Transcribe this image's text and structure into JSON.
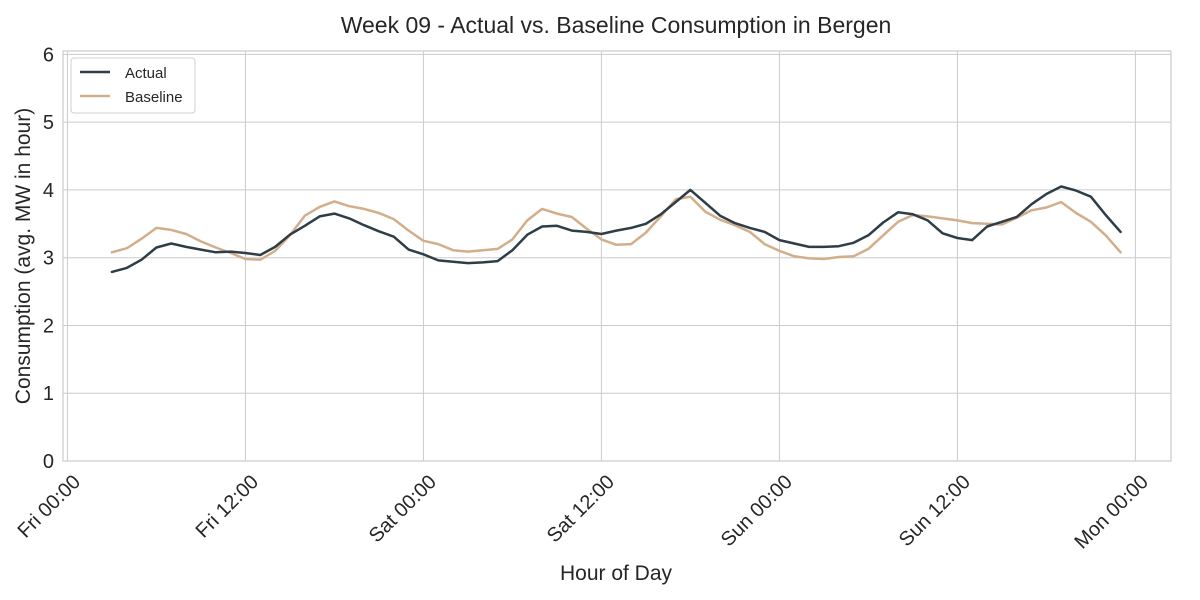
{
  "chart_data": {
    "type": "line",
    "title": "Week 09 - Actual vs. Baseline Consumption in Bergen",
    "xlabel": "Hour of Day",
    "ylabel": "Consumption (avg. MW in hour)",
    "x_ticks": [
      "Fri 00:00",
      "Fri 12:00",
      "Sat 00:00",
      "Sat 12:00",
      "Sun 00:00",
      "Sun 12:00",
      "Mon 00:00"
    ],
    "x_tick_hours": [
      0,
      12,
      24,
      36,
      48,
      60,
      72
    ],
    "xlim": [
      -0.3,
      74.4
    ],
    "y_ticks": [
      0,
      1,
      2,
      3,
      4,
      5,
      6
    ],
    "ylim": [
      0,
      6.05
    ],
    "grid": true,
    "legend_position": "top-left",
    "x": [
      3,
      4,
      5,
      6,
      7,
      8,
      9,
      10,
      11,
      12,
      13,
      14,
      15,
      16,
      17,
      18,
      19,
      20,
      21,
      22,
      23,
      24,
      25,
      26,
      27,
      28,
      29,
      30,
      31,
      32,
      33,
      34,
      35,
      36,
      37,
      38,
      39,
      40,
      41,
      42,
      43,
      44,
      45,
      46,
      47,
      48,
      49,
      50,
      51,
      52,
      53,
      54,
      55,
      56,
      57,
      58,
      59,
      60,
      61,
      62,
      63,
      64,
      65,
      66,
      67,
      68,
      69,
      70,
      71
    ],
    "series": [
      {
        "name": "Actual",
        "color": "#2f3e46",
        "values": [
          2.79,
          2.85,
          2.97,
          3.15,
          3.21,
          3.16,
          3.12,
          3.08,
          3.09,
          3.07,
          3.04,
          3.16,
          3.34,
          3.47,
          3.61,
          3.65,
          3.58,
          3.48,
          3.39,
          3.31,
          3.12,
          3.05,
          2.96,
          2.94,
          2.92,
          2.93,
          2.95,
          3.11,
          3.34,
          3.46,
          3.47,
          3.4,
          3.38,
          3.35,
          3.4,
          3.44,
          3.5,
          3.64,
          3.82,
          4.0,
          3.81,
          3.62,
          3.51,
          3.44,
          3.38,
          3.26,
          3.21,
          3.16,
          3.16,
          3.17,
          3.22,
          3.33,
          3.52,
          3.67,
          3.64,
          3.55,
          3.36,
          3.29,
          3.26,
          3.46,
          3.53,
          3.6,
          3.79,
          3.94,
          4.05,
          3.99,
          3.9,
          3.63,
          3.38
        ]
      },
      {
        "name": "Baseline",
        "color": "#d2ae8b",
        "values": [
          3.08,
          3.14,
          3.28,
          3.44,
          3.41,
          3.35,
          3.24,
          3.15,
          3.07,
          2.98,
          2.97,
          3.1,
          3.33,
          3.62,
          3.75,
          3.83,
          3.76,
          3.72,
          3.66,
          3.57,
          3.4,
          3.25,
          3.2,
          3.11,
          3.09,
          3.11,
          3.13,
          3.27,
          3.55,
          3.72,
          3.65,
          3.6,
          3.43,
          3.27,
          3.19,
          3.2,
          3.37,
          3.61,
          3.86,
          3.9,
          3.68,
          3.56,
          3.48,
          3.38,
          3.2,
          3.1,
          3.02,
          2.99,
          2.98,
          3.01,
          3.02,
          3.13,
          3.33,
          3.53,
          3.63,
          3.61,
          3.58,
          3.55,
          3.51,
          3.5,
          3.49,
          3.59,
          3.7,
          3.74,
          3.82,
          3.66,
          3.53,
          3.33,
          3.08
        ]
      }
    ]
  }
}
